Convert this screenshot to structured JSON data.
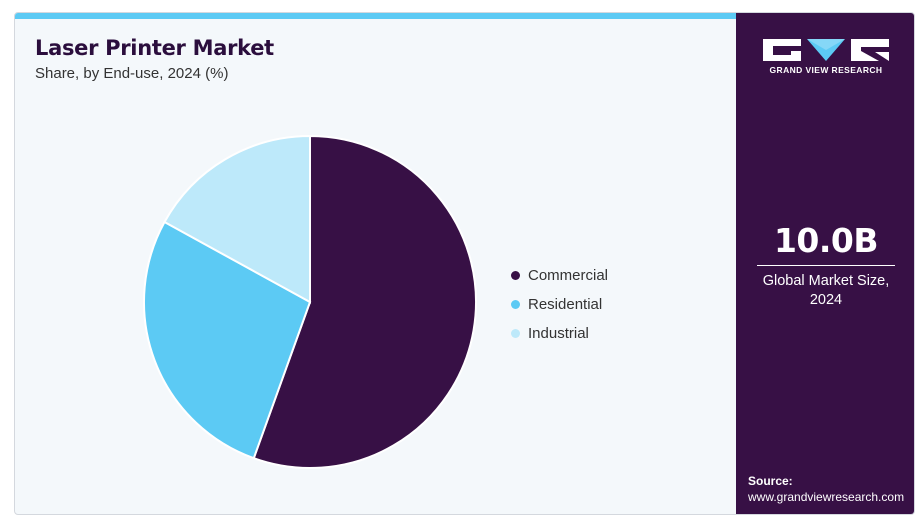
{
  "header": {
    "title": "Laser Printer Market",
    "subtitle": "Share, by End-use, 2024 (%)"
  },
  "chart_data": {
    "type": "pie",
    "categories": [
      "Commercial",
      "Residential",
      "Industrial"
    ],
    "values": [
      55.5,
      27.5,
      17.0
    ],
    "colors": [
      "#371045",
      "#5ccaf4",
      "#bde9fa"
    ],
    "start_angle": "12 o'clock",
    "direction": "clockwise",
    "legend": "right"
  },
  "side_panel": {
    "logo_text": "GRAND VIEW RESEARCH",
    "metric_value": "10.0B",
    "metric_label_line1": "Global Market Size,",
    "metric_label_line2": "2024",
    "source_label": "Source:",
    "source_url": "www.grandviewresearch.com",
    "background_color": "#371045"
  }
}
